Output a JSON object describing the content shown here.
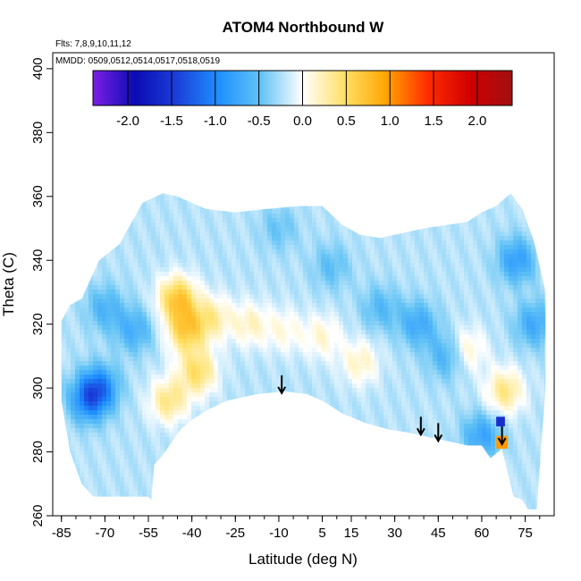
{
  "chart_data": {
    "type": "heatmap",
    "title": "ATOM4 Northbound W",
    "annotations": {
      "flights": "Flts: 7,8,9,10,11,12",
      "dates": "MMDD: 0509,0512,0514,0517,0518,0519"
    },
    "xlabel": "Latitude (deg N)",
    "ylabel": "Theta (C)",
    "xlim": [
      -88,
      85
    ],
    "ylim": [
      260,
      405
    ],
    "xticks": [
      -85,
      -70,
      -55,
      -40,
      -25,
      -10,
      5,
      15,
      30,
      45,
      60,
      75
    ],
    "yticks": [
      260,
      280,
      300,
      320,
      340,
      360,
      380,
      400
    ],
    "colorbar": {
      "range": [
        -2.4,
        2.4
      ],
      "ticks": [
        "-2.0",
        "-1.5",
        "-1.0",
        "-0.5",
        "0.0",
        "0.5",
        "1.0",
        "1.5",
        "2.0"
      ],
      "colors": [
        "#7b1fe6",
        "#0b0bb3",
        "#1a3fd9",
        "#1e90ff",
        "#63c3f5",
        "#ffffff",
        "#ffe066",
        "#ffa500",
        "#ff2a00",
        "#d00000",
        "#a01010"
      ]
    },
    "coverage_top": [
      [
        -85,
        321
      ],
      [
        -82,
        326
      ],
      [
        -78,
        328
      ],
      [
        -75,
        334
      ],
      [
        -72,
        340
      ],
      [
        -65,
        345
      ],
      [
        -57,
        358
      ],
      [
        -50,
        361
      ],
      [
        -45,
        360
      ],
      [
        -40,
        358
      ],
      [
        -35,
        356
      ],
      [
        -25,
        355
      ],
      [
        -15,
        356
      ],
      [
        -3,
        357
      ],
      [
        5,
        357
      ],
      [
        12,
        351
      ],
      [
        18,
        348
      ],
      [
        25,
        347
      ],
      [
        40,
        350
      ],
      [
        55,
        352
      ],
      [
        60,
        355
      ],
      [
        65,
        357
      ],
      [
        70,
        361
      ],
      [
        74,
        356
      ],
      [
        78,
        346
      ],
      [
        82,
        330
      ]
    ],
    "coverage_bottom": [
      [
        -85,
        296
      ],
      [
        -82,
        280
      ],
      [
        -78,
        270
      ],
      [
        -74,
        266
      ],
      [
        -70,
        266
      ],
      [
        -55,
        266
      ],
      [
        -54,
        265
      ],
      [
        -53,
        276
      ],
      [
        -50,
        279
      ],
      [
        -47,
        283
      ],
      [
        -44,
        287
      ],
      [
        -40,
        290
      ],
      [
        -35,
        293
      ],
      [
        -28,
        296
      ],
      [
        -18,
        298
      ],
      [
        -8,
        299
      ],
      [
        0,
        298
      ],
      [
        5,
        296
      ],
      [
        12,
        292
      ],
      [
        20,
        289
      ],
      [
        28,
        287
      ],
      [
        35,
        286
      ],
      [
        40,
        285
      ],
      [
        45,
        284
      ],
      [
        50,
        283
      ],
      [
        55,
        282
      ],
      [
        60,
        282
      ],
      [
        63,
        278
      ],
      [
        67,
        281
      ],
      [
        71,
        266
      ],
      [
        74,
        265
      ],
      [
        76,
        262
      ],
      [
        79,
        262
      ],
      [
        82,
        300
      ]
    ],
    "features": [
      {
        "lat": -45,
        "theta": 328,
        "value": 0.9
      },
      {
        "lat": -42,
        "theta": 318,
        "value": 0.8
      },
      {
        "lat": -38,
        "theta": 305,
        "value": 0.7
      },
      {
        "lat": -48,
        "theta": 296,
        "value": 0.6
      },
      {
        "lat": -33,
        "theta": 322,
        "value": 0.5
      },
      {
        "lat": -20,
        "theta": 320,
        "value": 0.4
      },
      {
        "lat": -8,
        "theta": 318,
        "value": 0.3
      },
      {
        "lat": 5,
        "theta": 316,
        "value": 0.35
      },
      {
        "lat": 18,
        "theta": 308,
        "value": 0.4
      },
      {
        "lat": 55,
        "theta": 312,
        "value": 0.4
      },
      {
        "lat": 68,
        "theta": 299,
        "value": 0.6
      },
      {
        "lat": -72,
        "theta": 300,
        "value": -0.8
      },
      {
        "lat": -76,
        "theta": 296,
        "value": -0.7
      },
      {
        "lat": -60,
        "theta": 318,
        "value": -0.45
      },
      {
        "lat": -70,
        "theta": 325,
        "value": -0.4
      },
      {
        "lat": 38,
        "theta": 320,
        "value": -0.5
      },
      {
        "lat": 48,
        "theta": 310,
        "value": -0.45
      },
      {
        "lat": 25,
        "theta": 325,
        "value": -0.35
      },
      {
        "lat": 72,
        "theta": 340,
        "value": -0.6
      },
      {
        "lat": 78,
        "theta": 320,
        "value": -0.5
      },
      {
        "lat": 8,
        "theta": 338,
        "value": -0.3
      },
      {
        "lat": -10,
        "theta": 350,
        "value": -0.25
      },
      {
        "lat": 60,
        "theta": 285,
        "value": -0.55
      }
    ],
    "patches": [
      {
        "lat0": 65,
        "lat1": 69,
        "th0": 281,
        "th1": 285,
        "value": 1.0
      },
      {
        "lat0": 65,
        "lat1": 68,
        "th0": 288,
        "th1": 291,
        "value": -1.6
      }
    ],
    "arrows": [
      {
        "lat": -9,
        "theta": 304
      },
      {
        "lat": 39,
        "theta": 291
      },
      {
        "lat": 45,
        "theta": 289
      },
      {
        "lat": 67,
        "theta": 288
      }
    ]
  }
}
